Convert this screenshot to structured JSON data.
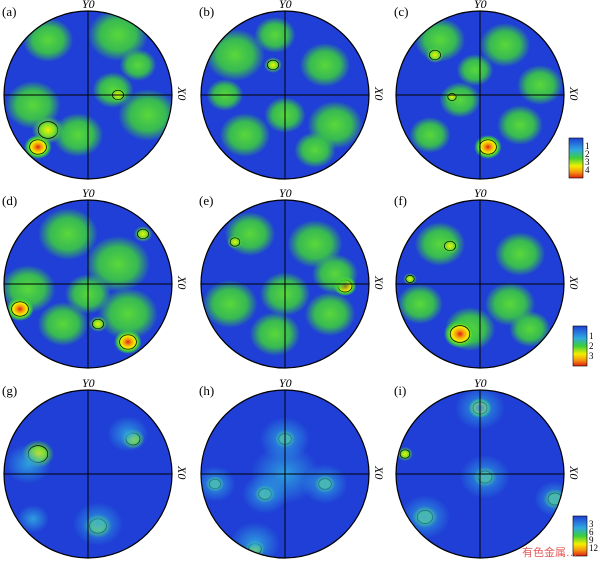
{
  "axes": {
    "top_label": "Y0",
    "side_label": "X0"
  },
  "panels": [
    {
      "id": "a",
      "label": "(a)"
    },
    {
      "id": "b",
      "label": "(b)"
    },
    {
      "id": "c",
      "label": "(c)"
    },
    {
      "id": "d",
      "label": "(d)"
    },
    {
      "id": "e",
      "label": "(e)"
    },
    {
      "id": "f",
      "label": "(f)"
    },
    {
      "id": "g",
      "label": "(g)"
    },
    {
      "id": "h",
      "label": "(h)"
    },
    {
      "id": "i",
      "label": "(i)"
    }
  ],
  "legends": [
    {
      "id": "row1",
      "ticks": [
        "1",
        "2",
        "3",
        "4"
      ]
    },
    {
      "id": "row2",
      "ticks": [
        "1",
        "2",
        "3"
      ]
    },
    {
      "id": "row3",
      "ticks": [
        "3",
        "6",
        "9",
        "12"
      ]
    }
  ],
  "colors": {
    "background_low": "#1f3fd6",
    "mid_green": "#3ccf3c",
    "yellow": "#f2f000",
    "orange": "#f59a10",
    "red": "#e02010"
  },
  "watermark": "有色金属…"
}
